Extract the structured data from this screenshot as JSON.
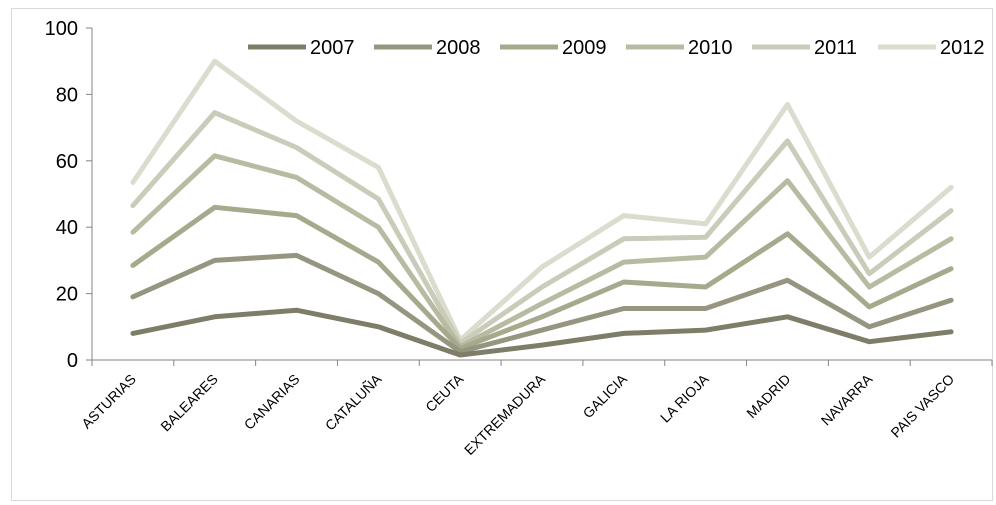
{
  "chart_data": {
    "type": "line",
    "title": "",
    "xlabel": "",
    "ylabel": "",
    "ylim": [
      0,
      100
    ],
    "yticks": [
      0,
      20,
      40,
      60,
      80,
      100
    ],
    "grid": false,
    "legend_position": "top-right",
    "categories": [
      "ASTURIAS",
      "BALEARES",
      "CANARIAS",
      "CATALUÑA",
      "CEUTA",
      "EXTREMADURA",
      "GALICIA",
      "LA RIOJA",
      "MADRID",
      "NAVARRA",
      "PAIS VASCO"
    ],
    "series": [
      {
        "name": "2007",
        "color": "#7e7e68",
        "values": [
          8,
          13,
          15,
          10,
          1.5,
          4.5,
          8,
          9,
          13,
          5.5,
          8.5
        ]
      },
      {
        "name": "2008",
        "color": "#959580",
        "values": [
          19,
          30,
          31.5,
          20,
          2.5,
          9,
          15.5,
          15.5,
          24,
          10,
          18
        ]
      },
      {
        "name": "2009",
        "color": "#a7a98d",
        "values": [
          28.5,
          46,
          43.5,
          29.5,
          3.5,
          13,
          23.5,
          22,
          38,
          16,
          27.5
        ]
      },
      {
        "name": "2010",
        "color": "#b8baa2",
        "values": [
          38.5,
          61.5,
          55,
          40,
          4,
          17,
          29.5,
          31,
          54,
          22,
          36.5
        ]
      },
      {
        "name": "2011",
        "color": "#cacbb9",
        "values": [
          46.5,
          74.5,
          64,
          48.5,
          5,
          22,
          36.5,
          37,
          66,
          26,
          45
        ]
      },
      {
        "name": "2012",
        "color": "#dadccd",
        "values": [
          53.5,
          90,
          72,
          58,
          6,
          28,
          43.5,
          41,
          77,
          31,
          52
        ]
      }
    ]
  }
}
